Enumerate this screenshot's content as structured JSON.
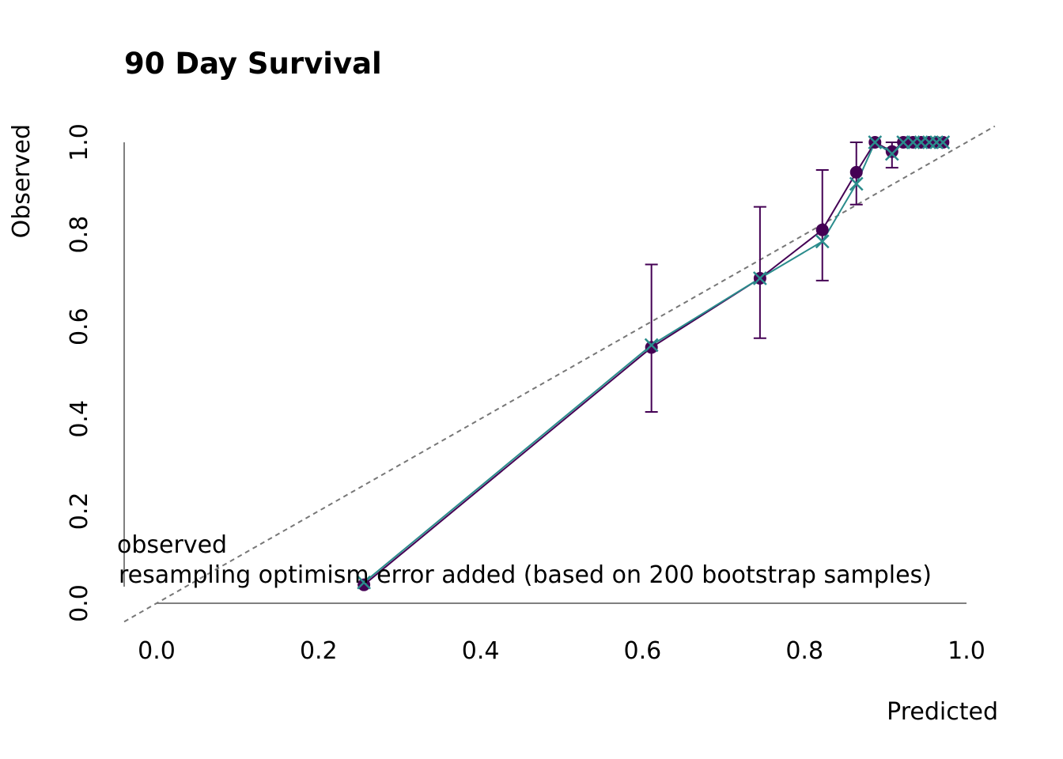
{
  "chart_data": {
    "type": "line",
    "title": "90 Day Survival",
    "xlabel": "Predicted",
    "ylabel": "Observed",
    "xlim": [
      0.0,
      1.0
    ],
    "ylim": [
      0.0,
      1.0
    ],
    "x_ticks": [
      "0.0",
      "0.2",
      "0.4",
      "0.6",
      "0.8",
      "1.0"
    ],
    "y_ticks": [
      "0.0",
      "0.2",
      "0.4",
      "0.6",
      "0.8",
      "1.0"
    ],
    "reference_line": {
      "style": "dashed",
      "color": "#777777",
      "slope": 1,
      "intercept": 0
    },
    "legend": {
      "placement": "bottom-left",
      "entries": [
        "observed",
        "resampling optimism error added (based on 200 bootstrap samples)"
      ]
    },
    "series": [
      {
        "name": "observed",
        "color": "#440154",
        "marker": "circle",
        "x": [
          0.256,
          0.611,
          0.745,
          0.822,
          0.864,
          0.887,
          0.908,
          0.922,
          0.934,
          0.944,
          0.954,
          0.963,
          0.971
        ],
        "y": [
          0.04,
          0.555,
          0.705,
          0.81,
          0.935,
          1.0,
          0.98,
          1.0,
          1.0,
          1.0,
          1.0,
          1.0,
          1.0
        ],
        "error_low": [
          null,
          0.415,
          0.575,
          0.7,
          0.865,
          null,
          0.945,
          null,
          null,
          null,
          null,
          null,
          null
        ],
        "error_high": [
          null,
          0.735,
          0.86,
          0.94,
          1.0,
          null,
          1.0,
          null,
          null,
          null,
          null,
          null,
          null
        ]
      },
      {
        "name": "resampling optimism error added (based on 200 bootstrap samples)",
        "color": "#2A8C8C",
        "marker": "x",
        "x": [
          0.256,
          0.611,
          0.745,
          0.822,
          0.864,
          0.887,
          0.908,
          0.922,
          0.934,
          0.944,
          0.954,
          0.963,
          0.971
        ],
        "y": [
          0.045,
          0.56,
          0.705,
          0.785,
          0.91,
          1.0,
          0.975,
          1.0,
          1.0,
          1.0,
          1.0,
          1.0,
          1.0
        ]
      }
    ]
  }
}
